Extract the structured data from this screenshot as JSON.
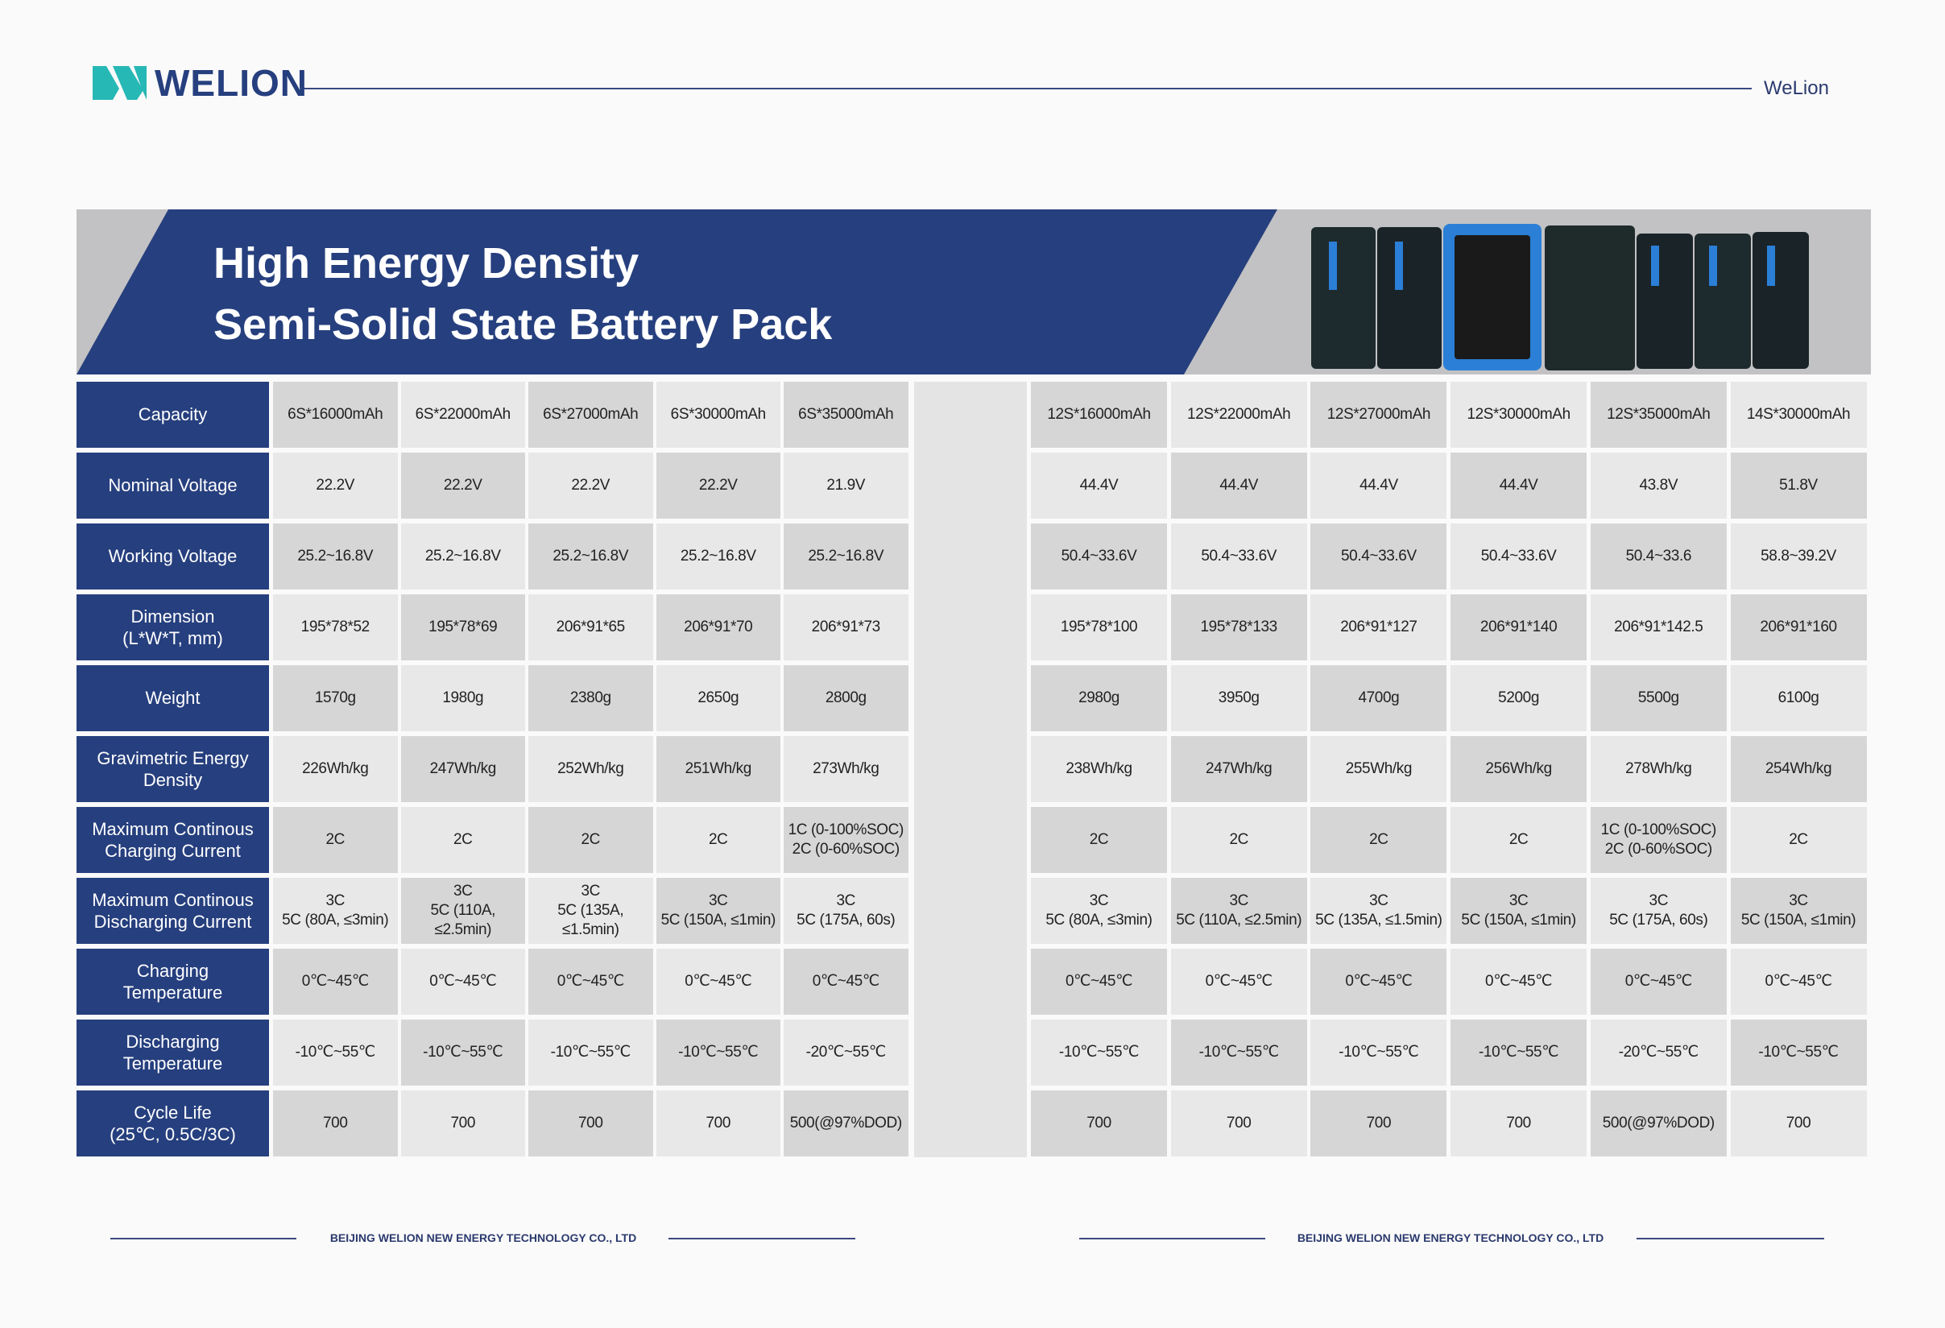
{
  "header": {
    "logo": "WELION",
    "brand": "WeLion"
  },
  "banner": {
    "title": [
      "High Energy Density",
      "Semi-Solid State Battery Pack"
    ]
  },
  "table": {
    "row_labels": [
      "Capacity",
      "Nominal Voltage",
      "Working Voltage",
      "Dimension\n(L*W*T, mm)",
      "Weight",
      "Gravimetric Energy\nDensity",
      "Maximum Continous\nCharging Current",
      "Maximum Continous\nDischarging Current",
      "Charging\nTemperature",
      "Discharging\nTemperature",
      "Cycle Life\n(25℃, 0.5C/3C)"
    ],
    "left_rows": [
      [
        "6S*16000mAh",
        "6S*22000mAh",
        "6S*27000mAh",
        "6S*30000mAh",
        "6S*35000mAh"
      ],
      [
        "22.2V",
        "22.2V",
        "22.2V",
        "22.2V",
        "21.9V"
      ],
      [
        "25.2~16.8V",
        "25.2~16.8V",
        "25.2~16.8V",
        "25.2~16.8V",
        "25.2~16.8V"
      ],
      [
        "195*78*52",
        "195*78*69",
        "206*91*65",
        "206*91*70",
        "206*91*73"
      ],
      [
        "1570g",
        "1980g",
        "2380g",
        "2650g",
        "2800g"
      ],
      [
        "226Wh/kg",
        "247Wh/kg",
        "252Wh/kg",
        "251Wh/kg",
        "273Wh/kg"
      ],
      [
        "2C",
        "2C",
        "2C",
        "2C",
        "1C (0-100%SOC)\n2C (0-60%SOC)"
      ],
      [
        "3C\n5C (80A, ≤3min)",
        "3C\n5C (110A, ≤2.5min)",
        "3C\n5C (135A, ≤1.5min)",
        "3C\n5C (150A, ≤1min)",
        "3C\n5C (175A, 60s)"
      ],
      [
        "0℃~45℃",
        "0℃~45℃",
        "0℃~45℃",
        "0℃~45℃",
        "0℃~45℃"
      ],
      [
        "-10℃~55℃",
        "-10℃~55℃",
        "-10℃~55℃",
        "-10℃~55℃",
        "-20℃~55℃"
      ],
      [
        "700",
        "700",
        "700",
        "700",
        "500(@97%DOD)"
      ]
    ],
    "right_rows": [
      [
        "12S*16000mAh",
        "12S*22000mAh",
        "12S*27000mAh",
        "12S*30000mAh",
        "12S*35000mAh",
        "14S*30000mAh"
      ],
      [
        "44.4V",
        "44.4V",
        "44.4V",
        "44.4V",
        "43.8V",
        "51.8V"
      ],
      [
        "50.4~33.6V",
        "50.4~33.6V",
        "50.4~33.6V",
        "50.4~33.6V",
        "50.4~33.6",
        "58.8~39.2V"
      ],
      [
        "195*78*100",
        "195*78*133",
        "206*91*127",
        "206*91*140",
        "206*91*142.5",
        "206*91*160"
      ],
      [
        "2980g",
        "3950g",
        "4700g",
        "5200g",
        "5500g",
        "6100g"
      ],
      [
        "238Wh/kg",
        "247Wh/kg",
        "255Wh/kg",
        "256Wh/kg",
        "278Wh/kg",
        "254Wh/kg"
      ],
      [
        "2C",
        "2C",
        "2C",
        "2C",
        "1C (0-100%SOC)\n2C (0-60%SOC)",
        "2C"
      ],
      [
        "3C\n5C (80A, ≤3min)",
        "3C\n5C (110A, ≤2.5min)",
        "3C\n5C (135A, ≤1.5min)",
        "3C\n5C (150A, ≤1min)",
        "3C\n5C (175A, 60s)",
        "3C\n5C (150A, ≤1min)"
      ],
      [
        "0℃~45℃",
        "0℃~45℃",
        "0℃~45℃",
        "0℃~45℃",
        "0℃~45℃",
        "0℃~45℃"
      ],
      [
        "-10℃~55℃",
        "-10℃~55℃",
        "-10℃~55℃",
        "-10℃~55℃",
        "-20℃~55℃",
        "-10℃~55℃"
      ],
      [
        "700",
        "700",
        "700",
        "700",
        "500(@97%DOD)",
        "700"
      ]
    ]
  },
  "footer": {
    "left": "BEIJING WELION NEW ENERGY TECHNOLOGY CO., LTD",
    "right": "BEIJING WELION NEW ENERGY TECHNOLOGY CO., LTD"
  }
}
